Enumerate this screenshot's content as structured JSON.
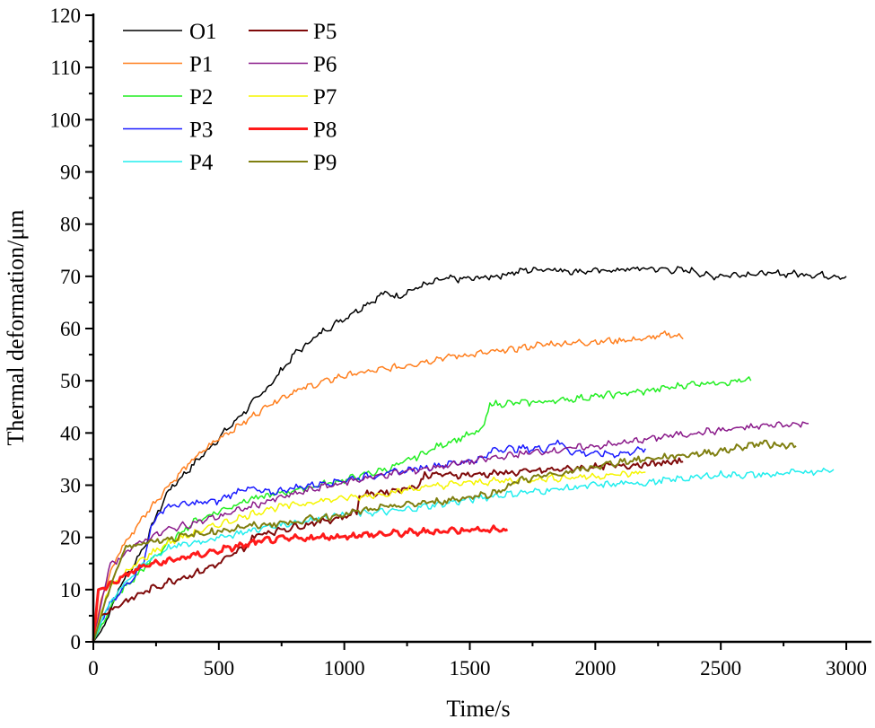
{
  "chart_data": {
    "type": "line",
    "title": "",
    "xlabel": "Time/s",
    "ylabel": "Thermal deformation/μm",
    "xlim": [
      0,
      3100
    ],
    "ylim": [
      0,
      120
    ],
    "xticks": [
      0,
      500,
      1000,
      1500,
      2000,
      2500,
      3000
    ],
    "yticks": [
      0,
      10,
      20,
      30,
      40,
      50,
      60,
      70,
      80,
      90,
      100,
      110,
      120
    ],
    "grid": false,
    "legend_position": "top-left",
    "series": [
      {
        "name": "O1",
        "color": "#000000",
        "width": 1.5,
        "points": [
          [
            0,
            0
          ],
          [
            30,
            2
          ],
          [
            60,
            5
          ],
          [
            100,
            10
          ],
          [
            150,
            14
          ],
          [
            200,
            18
          ],
          [
            250,
            24
          ],
          [
            300,
            29
          ],
          [
            400,
            34
          ],
          [
            500,
            39
          ],
          [
            600,
            44
          ],
          [
            700,
            49
          ],
          [
            800,
            55
          ],
          [
            900,
            59
          ],
          [
            1000,
            62
          ],
          [
            1100,
            65
          ],
          [
            1170,
            67
          ],
          [
            1200,
            66
          ],
          [
            1300,
            68
          ],
          [
            1400,
            69.5
          ],
          [
            1500,
            69.5
          ],
          [
            1600,
            70
          ],
          [
            1700,
            71
          ],
          [
            1800,
            71.5
          ],
          [
            1900,
            71
          ],
          [
            2000,
            71
          ],
          [
            2200,
            71.5
          ],
          [
            2400,
            71
          ],
          [
            2450,
            70
          ],
          [
            2600,
            70.5
          ],
          [
            2800,
            70.5
          ],
          [
            3000,
            70
          ]
        ]
      },
      {
        "name": "P1",
        "color": "#ff7f1e",
        "width": 1.5,
        "points": [
          [
            0,
            0
          ],
          [
            30,
            8
          ],
          [
            100,
            17
          ],
          [
            200,
            24
          ],
          [
            300,
            30
          ],
          [
            400,
            35
          ],
          [
            500,
            39
          ],
          [
            600,
            42
          ],
          [
            700,
            45.5
          ],
          [
            800,
            48
          ],
          [
            900,
            49.5
          ],
          [
            1000,
            51
          ],
          [
            1200,
            52.5
          ],
          [
            1400,
            54.5
          ],
          [
            1600,
            55.5
          ],
          [
            1800,
            57
          ],
          [
            2000,
            57.5
          ],
          [
            2200,
            58
          ],
          [
            2300,
            59
          ],
          [
            2350,
            58
          ]
        ]
      },
      {
        "name": "P2",
        "color": "#22ee22",
        "width": 1.5,
        "points": [
          [
            0,
            0
          ],
          [
            50,
            5
          ],
          [
            100,
            9
          ],
          [
            200,
            14
          ],
          [
            300,
            19
          ],
          [
            400,
            23
          ],
          [
            600,
            27
          ],
          [
            800,
            29
          ],
          [
            1000,
            31
          ],
          [
            1200,
            33.5
          ],
          [
            1400,
            38
          ],
          [
            1550,
            40.5
          ],
          [
            1580,
            45.5
          ],
          [
            1800,
            46
          ],
          [
            2000,
            47
          ],
          [
            2200,
            48
          ],
          [
            2400,
            49.5
          ],
          [
            2620,
            50
          ]
        ]
      },
      {
        "name": "P3",
        "color": "#1a1aff",
        "width": 1.5,
        "points": [
          [
            0,
            0
          ],
          [
            50,
            6
          ],
          [
            150,
            12
          ],
          [
            200,
            15
          ],
          [
            230,
            22
          ],
          [
            270,
            25
          ],
          [
            300,
            26
          ],
          [
            500,
            27
          ],
          [
            600,
            29.5
          ],
          [
            700,
            28.5
          ],
          [
            800,
            29.5
          ],
          [
            1000,
            31
          ],
          [
            1200,
            32.5
          ],
          [
            1400,
            34
          ],
          [
            1550,
            35
          ],
          [
            1600,
            37
          ],
          [
            1800,
            37
          ],
          [
            1850,
            38.5
          ],
          [
            1900,
            36.5
          ],
          [
            2000,
            36
          ],
          [
            2100,
            36
          ],
          [
            2200,
            37
          ]
        ]
      },
      {
        "name": "P4",
        "color": "#22eeee",
        "width": 1.5,
        "points": [
          [
            0,
            0
          ],
          [
            50,
            6
          ],
          [
            100,
            10
          ],
          [
            200,
            15
          ],
          [
            300,
            18
          ],
          [
            500,
            20
          ],
          [
            700,
            22
          ],
          [
            1000,
            24.5
          ],
          [
            1200,
            25
          ],
          [
            1400,
            26.5
          ],
          [
            1600,
            28
          ],
          [
            1800,
            29
          ],
          [
            2000,
            30
          ],
          [
            2200,
            30.5
          ],
          [
            2500,
            32
          ],
          [
            2700,
            32
          ],
          [
            2950,
            33
          ]
        ]
      },
      {
        "name": "P5",
        "color": "#7f0a0a",
        "width": 2,
        "points": [
          [
            0,
            0
          ],
          [
            30,
            5
          ],
          [
            100,
            7
          ],
          [
            200,
            9.5
          ],
          [
            300,
            11.5
          ],
          [
            400,
            13
          ],
          [
            500,
            15
          ],
          [
            600,
            18
          ],
          [
            650,
            20.5
          ],
          [
            800,
            22
          ],
          [
            1000,
            24
          ],
          [
            1050,
            25
          ],
          [
            1060,
            28
          ],
          [
            1200,
            29
          ],
          [
            1300,
            30
          ],
          [
            1320,
            32
          ],
          [
            1500,
            32
          ],
          [
            1700,
            32.5
          ],
          [
            2000,
            33.5
          ],
          [
            2200,
            34
          ],
          [
            2350,
            34.5
          ]
        ]
      },
      {
        "name": "P6",
        "color": "#8a1a8a",
        "width": 1.5,
        "points": [
          [
            0,
            0
          ],
          [
            60,
            14
          ],
          [
            100,
            16
          ],
          [
            200,
            19.5
          ],
          [
            300,
            21.5
          ],
          [
            500,
            24
          ],
          [
            700,
            27
          ],
          [
            900,
            29.5
          ],
          [
            1100,
            31.5
          ],
          [
            1300,
            33
          ],
          [
            1500,
            34.5
          ],
          [
            1700,
            36
          ],
          [
            1900,
            37
          ],
          [
            2100,
            38
          ],
          [
            2300,
            39.5
          ],
          [
            2500,
            40.5
          ],
          [
            2700,
            41.5
          ],
          [
            2850,
            41.8
          ]
        ]
      },
      {
        "name": "P7",
        "color": "#f5f500",
        "width": 1.5,
        "points": [
          [
            0,
            0
          ],
          [
            50,
            9
          ],
          [
            100,
            12
          ],
          [
            200,
            16
          ],
          [
            300,
            19
          ],
          [
            500,
            22.5
          ],
          [
            700,
            25.5
          ],
          [
            900,
            27
          ],
          [
            1100,
            28
          ],
          [
            1300,
            29.5
          ],
          [
            1500,
            30.5
          ],
          [
            1700,
            31
          ],
          [
            1900,
            31.5
          ],
          [
            2100,
            32
          ],
          [
            2200,
            32.5
          ]
        ]
      },
      {
        "name": "P8",
        "color": "#ff1a1a",
        "width": 3,
        "points": [
          [
            0,
            0
          ],
          [
            20,
            10
          ],
          [
            50,
            10.5
          ],
          [
            100,
            12
          ],
          [
            200,
            14.5
          ],
          [
            400,
            16.5
          ],
          [
            600,
            18.5
          ],
          [
            700,
            19.5
          ],
          [
            900,
            20
          ],
          [
            1100,
            20.5
          ],
          [
            1300,
            21
          ],
          [
            1500,
            21.5
          ],
          [
            1650,
            21.5
          ]
        ]
      },
      {
        "name": "P9",
        "color": "#7f7f10",
        "width": 2,
        "points": [
          [
            0,
            0
          ],
          [
            50,
            8
          ],
          [
            100,
            15
          ],
          [
            130,
            18
          ],
          [
            200,
            19
          ],
          [
            400,
            20.5
          ],
          [
            600,
            22
          ],
          [
            800,
            23
          ],
          [
            1000,
            24.5
          ],
          [
            1200,
            26
          ],
          [
            1400,
            27
          ],
          [
            1600,
            28.5
          ],
          [
            1700,
            31
          ],
          [
            1900,
            32.5
          ],
          [
            2100,
            34.5
          ],
          [
            2300,
            35.5
          ],
          [
            2500,
            36.5
          ],
          [
            2650,
            38
          ],
          [
            2800,
            37.5
          ]
        ]
      }
    ]
  }
}
